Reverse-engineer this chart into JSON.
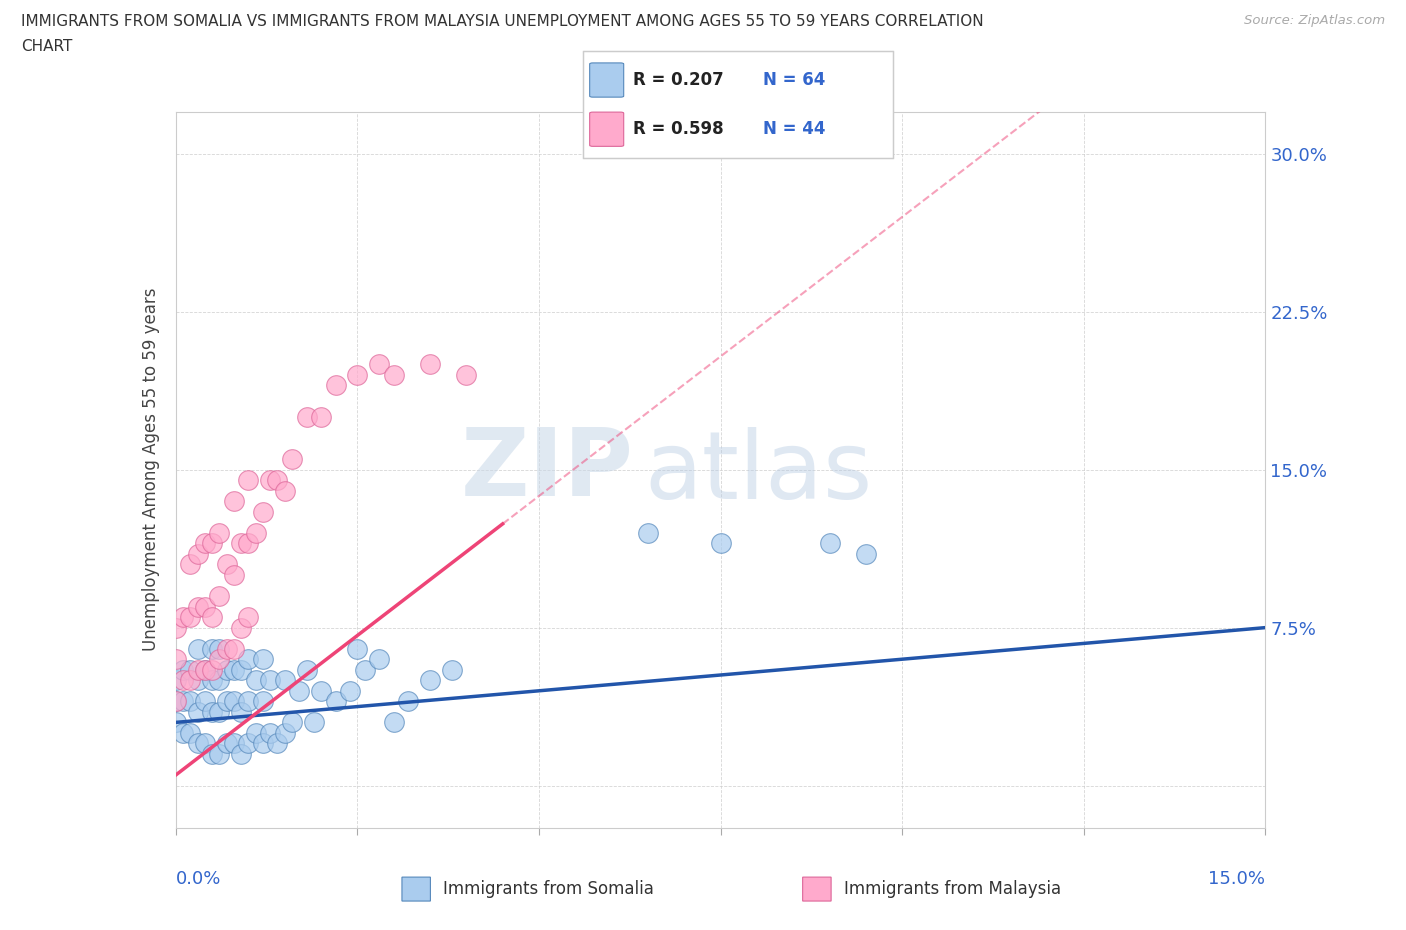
{
  "title_line1": "IMMIGRANTS FROM SOMALIA VS IMMIGRANTS FROM MALAYSIA UNEMPLOYMENT AMONG AGES 55 TO 59 YEARS CORRELATION",
  "title_line2": "CHART",
  "source": "Source: ZipAtlas.com",
  "yaxis_label": "Unemployment Among Ages 55 to 59 years",
  "xlim": [
    0.0,
    0.15
  ],
  "ylim": [
    -0.02,
    0.32
  ],
  "ylabel_ticks": [
    0.0,
    0.075,
    0.15,
    0.225,
    0.3
  ],
  "ylabel_tick_labels": [
    "",
    "7.5%",
    "15.0%",
    "22.5%",
    "30.0%"
  ],
  "somalia_color": "#aaccee",
  "somalia_edge": "#5588bb",
  "malaysia_color": "#ffaacc",
  "malaysia_edge": "#dd6699",
  "somalia_R": 0.207,
  "somalia_N": 64,
  "malaysia_R": 0.598,
  "malaysia_N": 44,
  "somalia_trend_color": "#2255aa",
  "malaysia_trend_color": "#ee4477",
  "watermark_zip": "ZIP",
  "watermark_atlas": "atlas",
  "legend_somalia": "Immigrants from Somalia",
  "legend_malaysia": "Immigrants from Malaysia",
  "somalia_points_x": [
    0.0,
    0.0,
    0.0,
    0.001,
    0.001,
    0.001,
    0.002,
    0.002,
    0.002,
    0.003,
    0.003,
    0.003,
    0.003,
    0.004,
    0.004,
    0.004,
    0.005,
    0.005,
    0.005,
    0.005,
    0.006,
    0.006,
    0.006,
    0.006,
    0.007,
    0.007,
    0.007,
    0.008,
    0.008,
    0.008,
    0.009,
    0.009,
    0.009,
    0.01,
    0.01,
    0.01,
    0.011,
    0.011,
    0.012,
    0.012,
    0.012,
    0.013,
    0.013,
    0.014,
    0.015,
    0.015,
    0.016,
    0.017,
    0.018,
    0.019,
    0.02,
    0.022,
    0.024,
    0.025,
    0.026,
    0.028,
    0.03,
    0.032,
    0.035,
    0.038,
    0.065,
    0.075,
    0.09,
    0.095
  ],
  "somalia_points_y": [
    0.03,
    0.04,
    0.05,
    0.025,
    0.04,
    0.055,
    0.025,
    0.04,
    0.055,
    0.02,
    0.035,
    0.05,
    0.065,
    0.02,
    0.04,
    0.055,
    0.015,
    0.035,
    0.05,
    0.065,
    0.015,
    0.035,
    0.05,
    0.065,
    0.02,
    0.04,
    0.055,
    0.02,
    0.04,
    0.055,
    0.015,
    0.035,
    0.055,
    0.02,
    0.04,
    0.06,
    0.025,
    0.05,
    0.02,
    0.04,
    0.06,
    0.025,
    0.05,
    0.02,
    0.025,
    0.05,
    0.03,
    0.045,
    0.055,
    0.03,
    0.045,
    0.04,
    0.045,
    0.065,
    0.055,
    0.06,
    0.03,
    0.04,
    0.05,
    0.055,
    0.12,
    0.115,
    0.115,
    0.11
  ],
  "malaysia_points_x": [
    0.0,
    0.0,
    0.0,
    0.001,
    0.001,
    0.002,
    0.002,
    0.002,
    0.003,
    0.003,
    0.003,
    0.004,
    0.004,
    0.004,
    0.005,
    0.005,
    0.005,
    0.006,
    0.006,
    0.006,
    0.007,
    0.007,
    0.008,
    0.008,
    0.008,
    0.009,
    0.009,
    0.01,
    0.01,
    0.01,
    0.011,
    0.012,
    0.013,
    0.014,
    0.015,
    0.016,
    0.018,
    0.02,
    0.022,
    0.025,
    0.028,
    0.03,
    0.035,
    0.04
  ],
  "malaysia_points_y": [
    0.04,
    0.06,
    0.075,
    0.05,
    0.08,
    0.05,
    0.08,
    0.105,
    0.055,
    0.085,
    0.11,
    0.055,
    0.085,
    0.115,
    0.055,
    0.08,
    0.115,
    0.06,
    0.09,
    0.12,
    0.065,
    0.105,
    0.065,
    0.1,
    0.135,
    0.075,
    0.115,
    0.08,
    0.115,
    0.145,
    0.12,
    0.13,
    0.145,
    0.145,
    0.14,
    0.155,
    0.175,
    0.175,
    0.19,
    0.195,
    0.2,
    0.195,
    0.2,
    0.195
  ]
}
